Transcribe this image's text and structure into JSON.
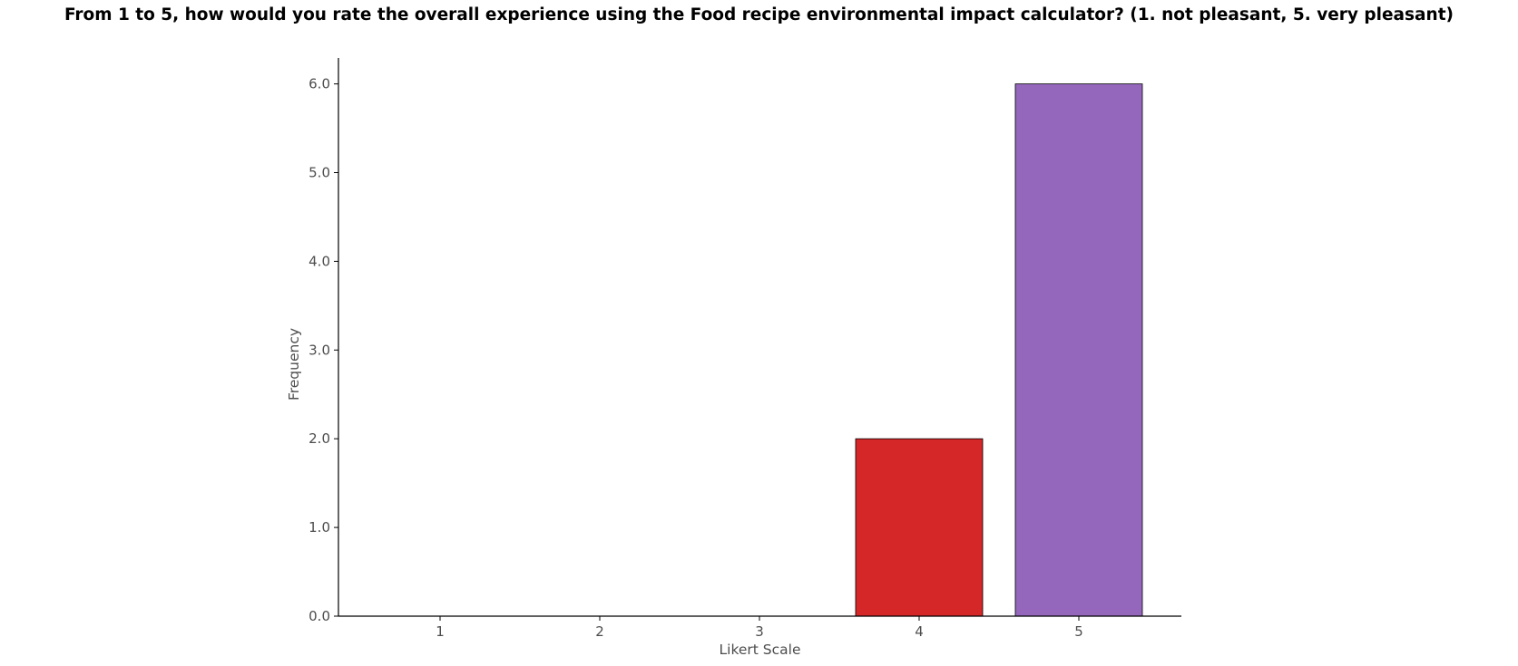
{
  "chart_data": {
    "type": "bar",
    "title": "From 1 to 5, how would you rate the overall experience using the Food recipe environmental impact calculator? (1. not pleasant, 5. very pleasant)",
    "xlabel": "Likert Scale",
    "ylabel": "Frequency",
    "categories": [
      "1",
      "2",
      "3",
      "4",
      "5"
    ],
    "values": [
      0,
      0,
      0,
      2,
      6
    ],
    "colors": [
      "#1f77b4",
      "#ff7f0e",
      "#2ca02c",
      "#d62728",
      "#9467bd"
    ],
    "ylim": [
      0,
      6.27
    ],
    "yticks": [
      0,
      1,
      2,
      3,
      4,
      5,
      6
    ],
    "ytick_labels": [
      "0.0",
      "1.0",
      "2.0",
      "3.0",
      "4.0",
      "5.0",
      "6.0"
    ],
    "grid": false,
    "legend": "none"
  }
}
